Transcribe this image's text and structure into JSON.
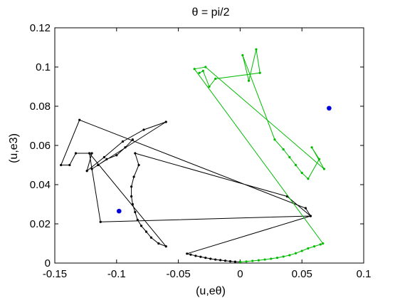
{
  "chart_data": {
    "type": "scatter",
    "title": "θ = pi/2",
    "xlabel": "(u,eθ)",
    "ylabel": "(u,e3)",
    "xlim": [
      -0.15,
      0.1
    ],
    "ylim": [
      0,
      0.12
    ],
    "xticks": [
      -0.15,
      -0.1,
      -0.05,
      0,
      0.05,
      0.1
    ],
    "xtick_labels": [
      "-0.15",
      "-0.1",
      "-0.05",
      "0",
      "0.05",
      "0.1"
    ],
    "yticks": [
      0,
      0.02,
      0.04,
      0.06,
      0.08,
      0.1,
      0.12
    ],
    "ytick_labels": [
      "0",
      "0.02",
      "0.04",
      "0.06",
      "0.08",
      "0.1",
      "0.12"
    ],
    "grid": false,
    "series": [
      {
        "color": "#000000",
        "marker": "dot",
        "line": true,
        "points": [
          [
            0,
            0.0006
          ],
          [
            -0.004,
            0.0007
          ],
          [
            -0.008,
            0.0009
          ],
          [
            -0.012,
            0.0012
          ],
          [
            -0.016,
            0.0015
          ],
          [
            -0.02,
            0.0018
          ],
          [
            -0.024,
            0.0022
          ],
          [
            -0.028,
            0.0027
          ],
          [
            -0.032,
            0.0032
          ],
          [
            -0.036,
            0.0037
          ],
          [
            -0.04,
            0.0043
          ],
          [
            -0.043,
            0.0048
          ],
          [
            0.057,
            0.024
          ],
          [
            0.038,
            0.034
          ],
          [
            -0.085,
            0.056
          ],
          [
            -0.082,
            0.05
          ],
          [
            -0.086,
            0.044
          ],
          [
            -0.088,
            0.039
          ],
          [
            -0.088,
            0.034
          ],
          [
            -0.087,
            0.03
          ],
          [
            -0.085,
            0.026
          ],
          [
            -0.083,
            0.022
          ],
          [
            -0.08,
            0.019
          ],
          [
            -0.076,
            0.016
          ],
          [
            -0.072,
            0.013
          ],
          [
            -0.066,
            0.01
          ],
          [
            -0.06,
            0.0085
          ],
          [
            -0.122,
            0.056
          ],
          [
            -0.113,
            0.021
          ],
          [
            0.057,
            0.024
          ],
          [
            0.053,
            0.028
          ],
          [
            -0.13,
            0.073
          ],
          [
            -0.145,
            0.05
          ],
          [
            -0.138,
            0.05
          ],
          [
            -0.133,
            0.056
          ],
          [
            -0.12,
            0.056
          ],
          [
            -0.124,
            0.047
          ],
          [
            -0.11,
            0.054
          ],
          [
            -0.095,
            0.062
          ],
          [
            -0.078,
            0.068
          ],
          [
            -0.06,
            0.072
          ],
          [
            -0.12,
            0.048
          ],
          [
            -0.115,
            0.05
          ],
          [
            -0.108,
            0.053
          ],
          [
            -0.1,
            0.055
          ],
          [
            -0.093,
            0.059
          ],
          [
            -0.087,
            0.063
          ]
        ]
      },
      {
        "color": "#00bb00",
        "marker": "dot",
        "line": true,
        "points": [
          [
            0,
            0.0006
          ],
          [
            0.005,
            0.0008
          ],
          [
            0.01,
            0.0011
          ],
          [
            0.015,
            0.0014
          ],
          [
            0.02,
            0.0018
          ],
          [
            0.025,
            0.0022
          ],
          [
            0.03,
            0.0027
          ],
          [
            0.035,
            0.0033
          ],
          [
            0.04,
            0.004
          ],
          [
            0.045,
            0.005
          ],
          [
            0.05,
            0.0062
          ],
          [
            0.055,
            0.0075
          ],
          [
            0.06,
            0.0085
          ],
          [
            0.065,
            0.0095
          ],
          [
            0.067,
            0.01
          ],
          [
            -0.037,
            0.099
          ],
          [
            -0.028,
            0.1
          ],
          [
            0.068,
            0.048
          ],
          [
            0.058,
            0.059
          ],
          [
            0.064,
            0.053
          ],
          [
            0.055,
            0.043
          ],
          [
            0.05,
            0.046
          ],
          [
            0.045,
            0.05
          ],
          [
            0.04,
            0.054
          ],
          [
            0.035,
            0.058
          ],
          [
            0.028,
            0.063
          ],
          [
            0.002,
            0.106
          ],
          [
            0.007,
            0.093
          ],
          [
            0.013,
            0.109
          ],
          [
            0.016,
            0.097
          ],
          [
            -0.02,
            0.094
          ],
          [
            -0.025,
            0.09
          ],
          [
            -0.03,
            0.098
          ],
          [
            -0.033,
            0.097
          ]
        ]
      },
      {
        "color": "#0000dd",
        "marker": "filled-circle",
        "line": false,
        "points": [
          [
            -0.098,
            0.0265
          ],
          [
            0.072,
            0.079
          ]
        ]
      }
    ]
  }
}
